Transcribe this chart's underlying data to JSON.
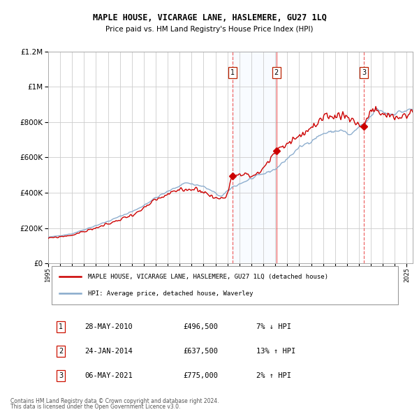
{
  "title": "MAPLE HOUSE, VICARAGE LANE, HASLEMERE, GU27 1LQ",
  "subtitle": "Price paid vs. HM Land Registry's House Price Index (HPI)",
  "sales": [
    {
      "date": "2010-05-28",
      "price": 496500,
      "label": "1"
    },
    {
      "date": "2014-01-24",
      "price": 637500,
      "label": "2"
    },
    {
      "date": "2021-05-06",
      "price": 775000,
      "label": "3"
    }
  ],
  "sale_display": [
    {
      "label": "1",
      "date": "28-MAY-2010",
      "price": "£496,500",
      "pct": "7% ↓ HPI"
    },
    {
      "label": "2",
      "date": "24-JAN-2014",
      "price": "£637,500",
      "pct": "13% ↑ HPI"
    },
    {
      "label": "3",
      "date": "06-MAY-2021",
      "price": "£775,000",
      "pct": "2% ↑ HPI"
    }
  ],
  "legend_line1": "MAPLE HOUSE, VICARAGE LANE, HASLEMERE, GU27 1LQ (detached house)",
  "legend_line2": "HPI: Average price, detached house, Waverley",
  "footer1": "Contains HM Land Registry data © Crown copyright and database right 2024.",
  "footer2": "This data is licensed under the Open Government Licence v3.0.",
  "ylim": [
    0,
    1200000
  ],
  "xstart": 1995.0,
  "xend": 2025.5,
  "red_color": "#cc0000",
  "blue_color": "#88aacc",
  "background_color": "#ffffff",
  "grid_color": "#cccccc",
  "sale_vline_color": "#ee6666",
  "shade_color": "#ddeeff"
}
